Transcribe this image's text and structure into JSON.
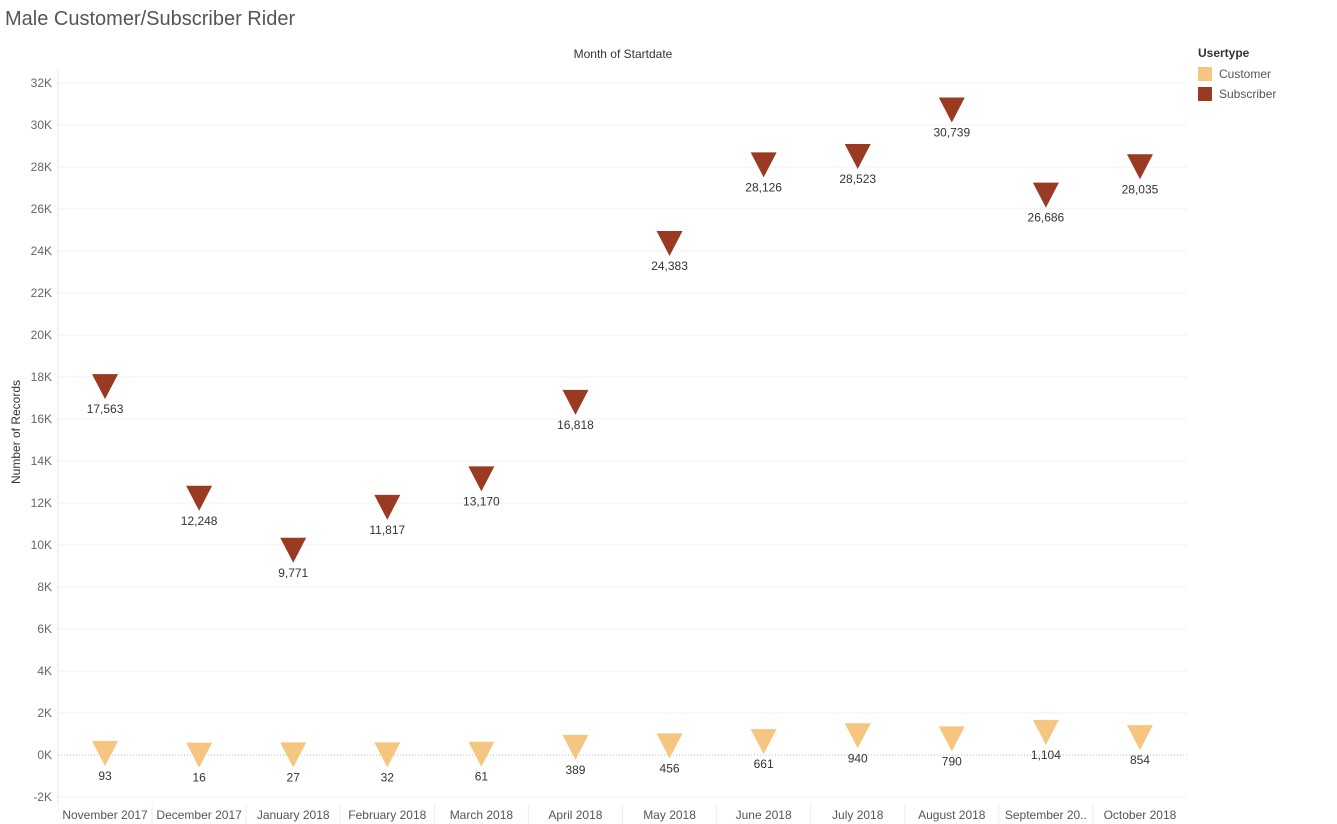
{
  "title": "Male Customer/Subscriber Rider",
  "legend": {
    "title": "Usertype",
    "items": [
      {
        "label": "Customer",
        "color": "#F6C57F"
      },
      {
        "label": "Subscriber",
        "color": "#9B3A22"
      }
    ]
  },
  "chart_data": {
    "type": "scatter",
    "marker": "triangle-down",
    "title": "Male Customer/Subscriber Rider",
    "xlabel": "Month of Startdate",
    "ylabel": "Number of Records",
    "categories": [
      "November 2017",
      "December 2017",
      "January 2018",
      "February 2018",
      "March 2018",
      "April 2018",
      "May 2018",
      "June 2018",
      "July 2018",
      "August 2018",
      "September 20..",
      "October 2018"
    ],
    "ylim": [
      -2000,
      32000
    ],
    "yticks": [
      {
        "value": -2000,
        "label": "-2K"
      },
      {
        "value": 0,
        "label": "0K"
      },
      {
        "value": 2000,
        "label": "2K"
      },
      {
        "value": 4000,
        "label": "4K"
      },
      {
        "value": 6000,
        "label": "6K"
      },
      {
        "value": 8000,
        "label": "8K"
      },
      {
        "value": 10000,
        "label": "10K"
      },
      {
        "value": 12000,
        "label": "12K"
      },
      {
        "value": 14000,
        "label": "14K"
      },
      {
        "value": 16000,
        "label": "16K"
      },
      {
        "value": 18000,
        "label": "18K"
      },
      {
        "value": 20000,
        "label": "20K"
      },
      {
        "value": 22000,
        "label": "22K"
      },
      {
        "value": 24000,
        "label": "24K"
      },
      {
        "value": 26000,
        "label": "26K"
      },
      {
        "value": 28000,
        "label": "28K"
      },
      {
        "value": 30000,
        "label": "30K"
      },
      {
        "value": 32000,
        "label": "32K"
      }
    ],
    "grid": true,
    "legend_position": "top-right",
    "series": [
      {
        "name": "Customer",
        "color": "#F6C57F",
        "values": [
          93,
          16,
          27,
          32,
          61,
          389,
          456,
          661,
          940,
          790,
          1104,
          854
        ],
        "labels": [
          "93",
          "16",
          "27",
          "32",
          "61",
          "389",
          "456",
          "661",
          "940",
          "790",
          "1,104",
          "854"
        ]
      },
      {
        "name": "Subscriber",
        "color": "#9B3A22",
        "values": [
          17563,
          12248,
          9771,
          11817,
          13170,
          16818,
          24383,
          28126,
          28523,
          30739,
          26686,
          28035
        ],
        "labels": [
          "17,563",
          "12,248",
          "9,771",
          "11,817",
          "13,170",
          "16,818",
          "24,383",
          "28,126",
          "28,523",
          "30,739",
          "26,686",
          "28,035"
        ]
      }
    ]
  }
}
